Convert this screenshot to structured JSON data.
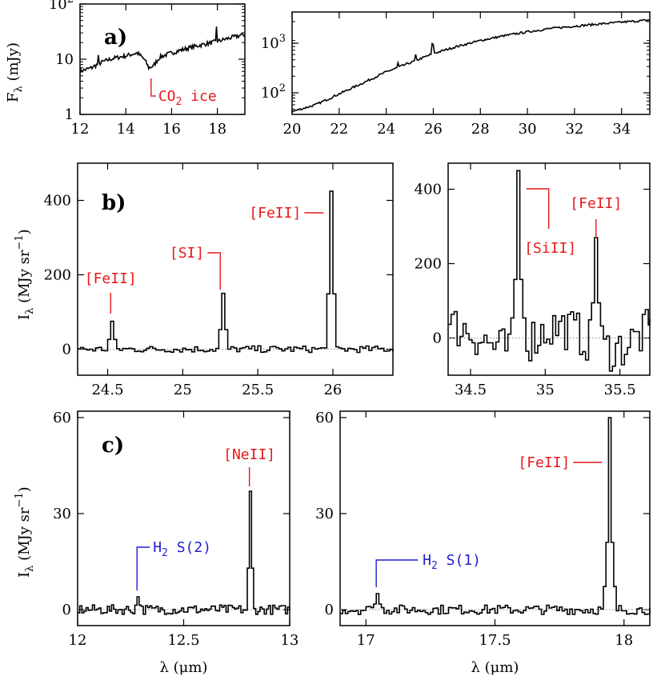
{
  "colors": {
    "red": "#e41a1c",
    "blue": "#1f1fd2",
    "ink": "#000000"
  },
  "chart_data": [
    {
      "type": "line",
      "panel": "a)",
      "xscale": "linear",
      "yscale": "log",
      "xlim": [
        12,
        19.2
      ],
      "ylim": [
        1,
        100
      ],
      "xticks": [
        "12",
        "14",
        "16",
        "18"
      ],
      "ylabel": "Fλ (mJy)",
      "yticks": [
        "1",
        "10",
        "10²"
      ],
      "series": [
        {
          "x": [
            12.0,
            12.5,
            13.0,
            13.5,
            14.0,
            14.5,
            14.8,
            15.0,
            15.2,
            15.5,
            16.0,
            16.5,
            17.0,
            17.5,
            18.0,
            18.5,
            19.0,
            19.2
          ],
          "y": [
            6,
            7,
            9,
            10.5,
            11.5,
            13,
            10,
            7,
            7.5,
            11,
            13,
            15,
            17,
            19,
            21,
            24,
            27,
            28
          ]
        }
      ],
      "annotations": [
        {
          "text": "CO2 ice",
          "x": 15.0,
          "color": "red"
        }
      ]
    },
    {
      "type": "line",
      "xscale": "linear",
      "yscale": "log",
      "xlim": [
        20,
        35.2
      ],
      "ylim": [
        40,
        3000
      ],
      "xticks": [
        "20",
        "22",
        "24",
        "26",
        "28",
        "30",
        "32",
        "34"
      ],
      "yticks": [
        "10²",
        "10³"
      ],
      "series": [
        {
          "x": [
            20.0,
            21.0,
            22.0,
            23.0,
            24.0,
            25.0,
            26.0,
            27.0,
            28.0,
            29.0,
            30.0,
            31.0,
            32.0,
            33.0,
            34.0,
            35.0,
            35.2
          ],
          "y": [
            45,
            60,
            95,
            150,
            240,
            350,
            520,
            700,
            900,
            1100,
            1300,
            1500,
            1650,
            1800,
            1950,
            2100,
            2150
          ]
        }
      ]
    },
    {
      "type": "line",
      "panel": "b)",
      "xlim": [
        24.3,
        26.4
      ],
      "ylim": [
        -70,
        500
      ],
      "xticks": [
        "24.5",
        "25",
        "25.5",
        "26"
      ],
      "ylabel": "Iλ (MJy sr−1)",
      "yticks": [
        "0",
        "200",
        "400"
      ],
      "series": [
        {
          "lines": [
            [
              24.52,
              75
            ],
            [
              25.25,
              150
            ],
            [
              25.97,
              425
            ]
          ]
        }
      ],
      "annotations": [
        {
          "text": "[FeII]",
          "x": 24.52,
          "color": "red"
        },
        {
          "text": "[SI]",
          "x": 25.25,
          "color": "red"
        },
        {
          "text": "[FeII]",
          "x": 25.97,
          "color": "red"
        }
      ]
    },
    {
      "type": "line",
      "xlim": [
        34.35,
        35.7
      ],
      "ylim": [
        -100,
        470
      ],
      "xticks": [
        "34.5",
        "35",
        "35.5"
      ],
      "yticks": [
        "0",
        "200",
        "400"
      ],
      "series": [
        {
          "lines": [
            [
              34.82,
              450
            ],
            [
              35.34,
              270
            ]
          ]
        }
      ],
      "annotations": [
        {
          "text": "[SiII]",
          "x": 34.82,
          "color": "red"
        },
        {
          "text": "[FeII]",
          "x": 35.34,
          "color": "red"
        }
      ]
    },
    {
      "type": "line",
      "panel": "c)",
      "xlim": [
        12.0,
        13.0
      ],
      "ylim": [
        -5,
        62
      ],
      "xticks": [
        "12",
        "12.5",
        "13"
      ],
      "xlabel": "λ (μm)",
      "ylabel": "Iλ (MJy sr−1)",
      "yticks": [
        "0",
        "30",
        "60"
      ],
      "series": [
        {
          "lines": [
            [
              12.28,
              4
            ],
            [
              12.81,
              37
            ]
          ]
        }
      ],
      "annotations": [
        {
          "text": "H2 S(2)",
          "x": 12.28,
          "color": "blue"
        },
        {
          "text": "[NeII]",
          "x": 12.81,
          "color": "red"
        }
      ]
    },
    {
      "type": "line",
      "xlim": [
        16.9,
        18.1
      ],
      "ylim": [
        -5,
        62
      ],
      "xticks": [
        "17",
        "17.5",
        "18"
      ],
      "xlabel": "λ (μm)",
      "yticks": [
        "0",
        "30",
        "60"
      ],
      "series": [
        {
          "lines": [
            [
              17.04,
              5
            ],
            [
              17.94,
              60
            ]
          ]
        }
      ],
      "annotations": [
        {
          "text": "H2 S(1)",
          "x": 17.04,
          "color": "blue"
        },
        {
          "text": "[FeII]",
          "x": 17.94,
          "color": "red"
        }
      ]
    }
  ]
}
